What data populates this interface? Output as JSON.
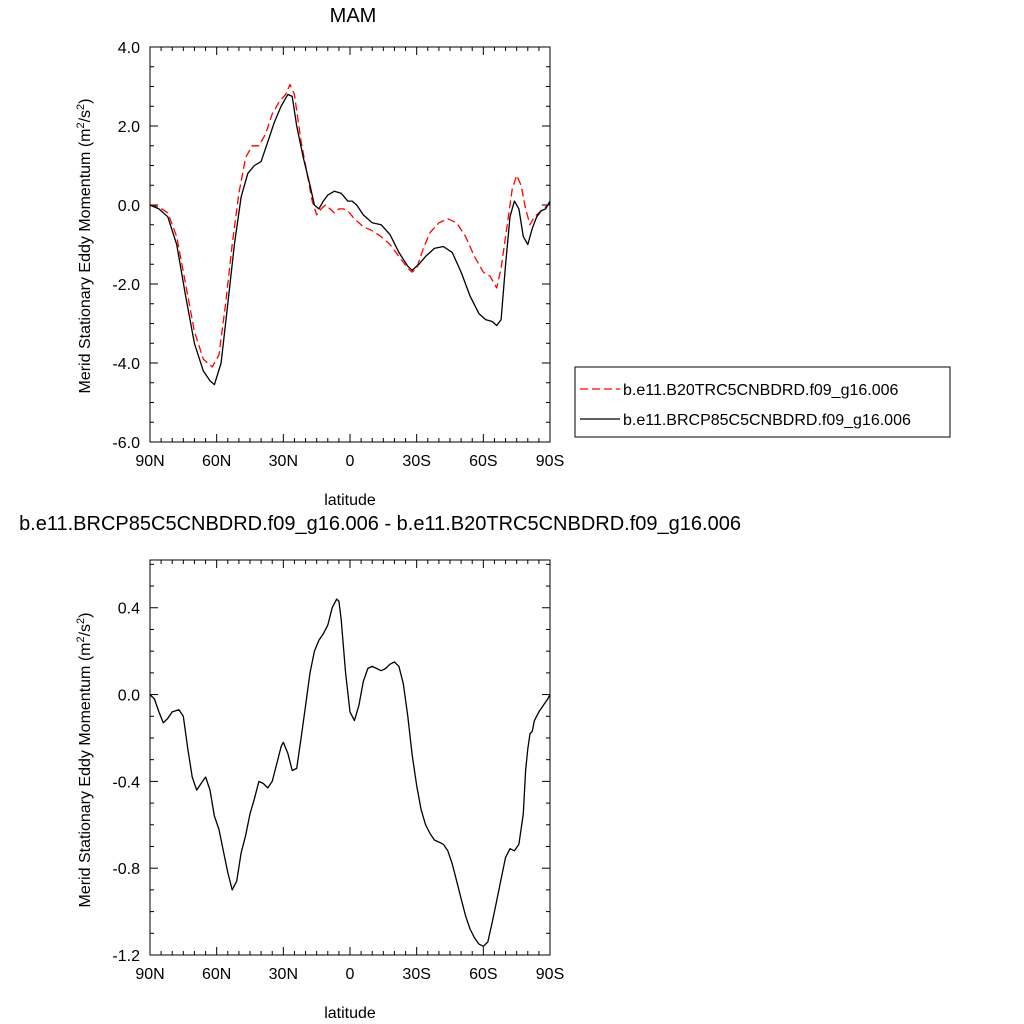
{
  "chart_data": [
    {
      "type": "line",
      "title": "MAM",
      "xlabel": "latitude",
      "ylabel": "Merid Stationary Eddy Momentum (m²/s²)",
      "ylabel_parts": {
        "main": "Merid Stationary Eddy Momentum (m",
        "sup1": "2",
        "mid": "/s",
        "sup2": "2",
        "end": ")"
      },
      "xlim": [
        90,
        -90
      ],
      "ylim": [
        -6.0,
        4.0
      ],
      "x_ticks": [
        90,
        60,
        30,
        0,
        -30,
        -60,
        -90
      ],
      "x_tick_labels": [
        "90N",
        "60N",
        "30N",
        "0",
        "30S",
        "60S",
        "90S"
      ],
      "y_ticks": [
        -6.0,
        -4.0,
        -2.0,
        0.0,
        2.0,
        4.0
      ],
      "y_tick_labels": [
        "-6.0",
        "-4.0",
        "-2.0",
        "0.0",
        "2.0",
        "4.0"
      ],
      "grid": false,
      "legend_position": "right",
      "series": [
        {
          "name": "b.e11.B20TRC5CNBDRD.f09_g16.006",
          "color": "#ff0000",
          "dash": "dashed",
          "points": [
            [
              90,
              0.0
            ],
            [
              86,
              -0.05
            ],
            [
              82,
              -0.2
            ],
            [
              78,
              -0.8
            ],
            [
              74,
              -2.0
            ],
            [
              70,
              -3.2
            ],
            [
              66,
              -3.9
            ],
            [
              62,
              -4.1
            ],
            [
              59,
              -3.8
            ],
            [
              56,
              -2.5
            ],
            [
              53,
              -1.0
            ],
            [
              50,
              0.3
            ],
            [
              47,
              1.2
            ],
            [
              44,
              1.5
            ],
            [
              41,
              1.5
            ],
            [
              38,
              1.8
            ],
            [
              35,
              2.3
            ],
            [
              32,
              2.6
            ],
            [
              29,
              2.8
            ],
            [
              27,
              3.05
            ],
            [
              25,
              2.8
            ],
            [
              22,
              1.6
            ],
            [
              19,
              0.7
            ],
            [
              17,
              0.1
            ],
            [
              15,
              -0.25
            ],
            [
              13,
              -0.1
            ],
            [
              11,
              0.0
            ],
            [
              9,
              -0.1
            ],
            [
              7,
              -0.2
            ],
            [
              5,
              -0.1
            ],
            [
              3,
              -0.1
            ],
            [
              1,
              -0.15
            ],
            [
              -2,
              -0.35
            ],
            [
              -6,
              -0.55
            ],
            [
              -10,
              -0.65
            ],
            [
              -14,
              -0.8
            ],
            [
              -18,
              -1.0
            ],
            [
              -22,
              -1.3
            ],
            [
              -26,
              -1.6
            ],
            [
              -28,
              -1.7
            ],
            [
              -30,
              -1.6
            ],
            [
              -33,
              -1.1
            ],
            [
              -36,
              -0.7
            ],
            [
              -40,
              -0.45
            ],
            [
              -44,
              -0.35
            ],
            [
              -48,
              -0.45
            ],
            [
              -52,
              -0.8
            ],
            [
              -56,
              -1.3
            ],
            [
              -60,
              -1.7
            ],
            [
              -63,
              -1.8
            ],
            [
              -66,
              -2.1
            ],
            [
              -68,
              -1.6
            ],
            [
              -71,
              -0.4
            ],
            [
              -73,
              0.4
            ],
            [
              -75,
              0.75
            ],
            [
              -77,
              0.5
            ],
            [
              -79,
              -0.1
            ],
            [
              -81,
              -0.5
            ],
            [
              -83,
              -0.3
            ],
            [
              -85,
              -0.2
            ],
            [
              -87,
              -0.1
            ],
            [
              -89,
              0.0
            ],
            [
              -90,
              0.05
            ]
          ]
        },
        {
          "name": "b.e11.BRCP85C5CNBDRD.f09_g16.006",
          "color": "#000000",
          "dash": "solid",
          "points": [
            [
              90,
              0.0
            ],
            [
              86,
              -0.1
            ],
            [
              82,
              -0.3
            ],
            [
              78,
              -1.0
            ],
            [
              74,
              -2.3
            ],
            [
              70,
              -3.5
            ],
            [
              66,
              -4.2
            ],
            [
              63,
              -4.45
            ],
            [
              61,
              -4.55
            ],
            [
              58,
              -4.0
            ],
            [
              55,
              -2.5
            ],
            [
              52,
              -1.0
            ],
            [
              49,
              0.2
            ],
            [
              46,
              0.8
            ],
            [
              43,
              1.0
            ],
            [
              40,
              1.1
            ],
            [
              37,
              1.6
            ],
            [
              34,
              2.1
            ],
            [
              31,
              2.5
            ],
            [
              28,
              2.8
            ],
            [
              26,
              2.75
            ],
            [
              24,
              2.0
            ],
            [
              21,
              1.2
            ],
            [
              18,
              0.5
            ],
            [
              16,
              0.0
            ],
            [
              14,
              -0.1
            ],
            [
              12,
              0.1
            ],
            [
              10,
              0.25
            ],
            [
              7,
              0.35
            ],
            [
              4,
              0.3
            ],
            [
              1,
              0.1
            ],
            [
              -1,
              0.1
            ],
            [
              -3,
              0.0
            ],
            [
              -6,
              -0.25
            ],
            [
              -10,
              -0.45
            ],
            [
              -14,
              -0.5
            ],
            [
              -18,
              -0.75
            ],
            [
              -22,
              -1.2
            ],
            [
              -26,
              -1.55
            ],
            [
              -28,
              -1.65
            ],
            [
              -31,
              -1.5
            ],
            [
              -34,
              -1.3
            ],
            [
              -38,
              -1.1
            ],
            [
              -42,
              -1.05
            ],
            [
              -46,
              -1.2
            ],
            [
              -50,
              -1.7
            ],
            [
              -54,
              -2.3
            ],
            [
              -58,
              -2.75
            ],
            [
              -61,
              -2.9
            ],
            [
              -64,
              -2.95
            ],
            [
              -66,
              -3.05
            ],
            [
              -68,
              -2.9
            ],
            [
              -70,
              -1.5
            ],
            [
              -72,
              -0.3
            ],
            [
              -74,
              0.1
            ],
            [
              -76,
              -0.1
            ],
            [
              -78,
              -0.8
            ],
            [
              -80,
              -1.0
            ],
            [
              -82,
              -0.6
            ],
            [
              -84,
              -0.3
            ],
            [
              -86,
              -0.15
            ],
            [
              -88,
              -0.1
            ],
            [
              -90,
              0.1
            ]
          ]
        }
      ]
    },
    {
      "type": "line",
      "title": "b.e11.BRCP85C5CNBDRD.f09_g16.006 - b.e11.B20TRC5CNBDRD.f09_g16.006",
      "xlabel": "latitude",
      "ylabel": "Merid Stationary Eddy Momentum (m²/s²)",
      "ylabel_parts": {
        "main": "Merid Stationary Eddy Momentum (m",
        "sup1": "2",
        "mid": "/s",
        "sup2": "2",
        "end": ")"
      },
      "xlim": [
        90,
        -90
      ],
      "ylim": [
        -1.2,
        0.62
      ],
      "x_ticks": [
        90,
        60,
        30,
        0,
        -30,
        -60,
        -90
      ],
      "x_tick_labels": [
        "90N",
        "60N",
        "30N",
        "0",
        "30S",
        "60S",
        "90S"
      ],
      "y_ticks": [
        -1.2,
        -0.8,
        -0.4,
        0.0,
        0.4
      ],
      "y_tick_labels": [
        "-1.2",
        "-0.8",
        "-0.4",
        "0.0",
        "0.4"
      ],
      "grid": false,
      "series": [
        {
          "color": "#000000",
          "dash": "solid",
          "points": [
            [
              90,
              0.0
            ],
            [
              88,
              -0.02
            ],
            [
              86,
              -0.08
            ],
            [
              84,
              -0.13
            ],
            [
              82,
              -0.11
            ],
            [
              80,
              -0.08
            ],
            [
              77,
              -0.07
            ],
            [
              75,
              -0.1
            ],
            [
              73,
              -0.25
            ],
            [
              71,
              -0.38
            ],
            [
              69,
              -0.44
            ],
            [
              67,
              -0.41
            ],
            [
              65,
              -0.38
            ],
            [
              63,
              -0.44
            ],
            [
              61,
              -0.56
            ],
            [
              59,
              -0.62
            ],
            [
              57,
              -0.72
            ],
            [
              55,
              -0.82
            ],
            [
              53,
              -0.9
            ],
            [
              51,
              -0.86
            ],
            [
              49,
              -0.73
            ],
            [
              47,
              -0.65
            ],
            [
              45,
              -0.55
            ],
            [
              43,
              -0.48
            ],
            [
              41,
              -0.4
            ],
            [
              39,
              -0.41
            ],
            [
              37,
              -0.43
            ],
            [
              35,
              -0.4
            ],
            [
              33,
              -0.32
            ],
            [
              31,
              -0.24
            ],
            [
              30,
              -0.22
            ],
            [
              28,
              -0.27
            ],
            [
              26,
              -0.35
            ],
            [
              24,
              -0.34
            ],
            [
              22,
              -0.2
            ],
            [
              20,
              -0.05
            ],
            [
              18,
              0.1
            ],
            [
              16,
              0.2
            ],
            [
              14,
              0.25
            ],
            [
              12,
              0.28
            ],
            [
              10,
              0.32
            ],
            [
              8,
              0.4
            ],
            [
              6,
              0.44
            ],
            [
              5,
              0.43
            ],
            [
              4,
              0.35
            ],
            [
              2,
              0.1
            ],
            [
              0,
              -0.08
            ],
            [
              -2,
              -0.12
            ],
            [
              -4,
              -0.05
            ],
            [
              -6,
              0.06
            ],
            [
              -8,
              0.12
            ],
            [
              -10,
              0.13
            ],
            [
              -12,
              0.12
            ],
            [
              -14,
              0.11
            ],
            [
              -16,
              0.12
            ],
            [
              -18,
              0.14
            ],
            [
              -20,
              0.15
            ],
            [
              -22,
              0.13
            ],
            [
              -24,
              0.05
            ],
            [
              -26,
              -0.1
            ],
            [
              -28,
              -0.28
            ],
            [
              -30,
              -0.42
            ],
            [
              -32,
              -0.53
            ],
            [
              -34,
              -0.6
            ],
            [
              -36,
              -0.64
            ],
            [
              -38,
              -0.67
            ],
            [
              -40,
              -0.68
            ],
            [
              -42,
              -0.69
            ],
            [
              -44,
              -0.72
            ],
            [
              -46,
              -0.78
            ],
            [
              -48,
              -0.86
            ],
            [
              -50,
              -0.94
            ],
            [
              -52,
              -1.02
            ],
            [
              -54,
              -1.08
            ],
            [
              -56,
              -1.12
            ],
            [
              -58,
              -1.15
            ],
            [
              -60,
              -1.16
            ],
            [
              -62,
              -1.14
            ],
            [
              -64,
              -1.05
            ],
            [
              -66,
              -0.95
            ],
            [
              -68,
              -0.85
            ],
            [
              -70,
              -0.75
            ],
            [
              -72,
              -0.71
            ],
            [
              -74,
              -0.72
            ],
            [
              -76,
              -0.69
            ],
            [
              -78,
              -0.55
            ],
            [
              -79,
              -0.35
            ],
            [
              -80,
              -0.25
            ],
            [
              -81,
              -0.18
            ],
            [
              -82,
              -0.17
            ],
            [
              -83,
              -0.12
            ],
            [
              -85,
              -0.08
            ],
            [
              -87,
              -0.05
            ],
            [
              -89,
              -0.02
            ],
            [
              -90,
              0.0
            ]
          ]
        }
      ]
    }
  ]
}
